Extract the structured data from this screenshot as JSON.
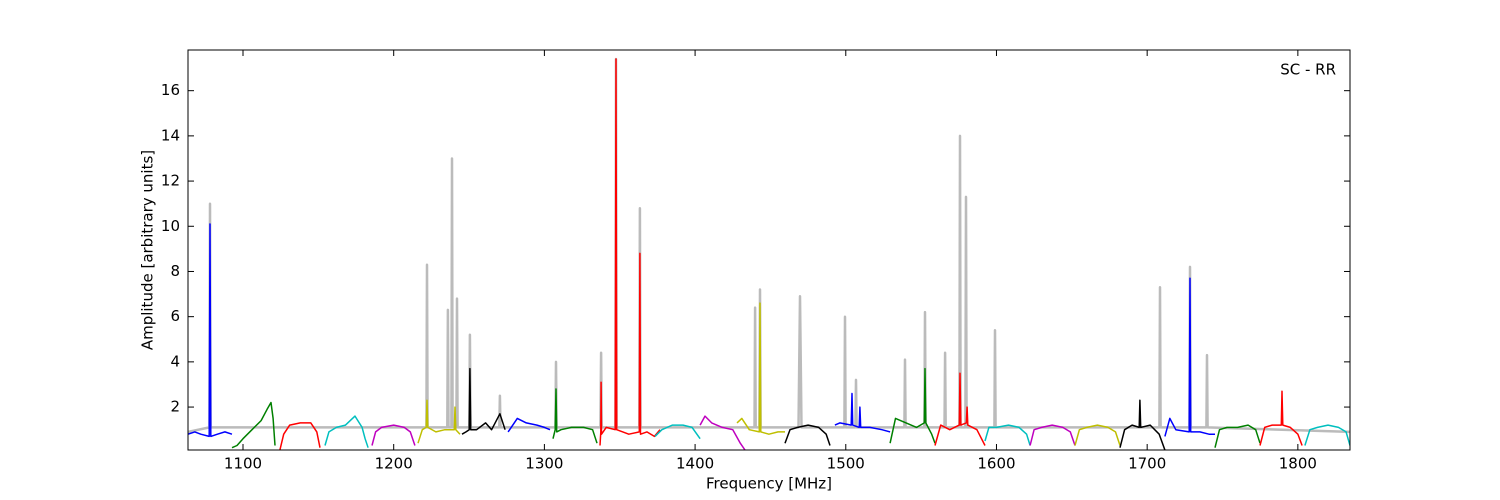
{
  "chart_data": {
    "type": "line",
    "annotation": "SC - RR",
    "xlabel": "Frequency [MHz]",
    "ylabel": "Amplitude [arbitrary units]",
    "xlim": [
      1063.5,
      1834.6
    ],
    "ylim": [
      0.1,
      17.8
    ],
    "xticks": [
      1100,
      1200,
      1300,
      1400,
      1500,
      1600,
      1700,
      1800
    ],
    "yticks": [
      2,
      4,
      6,
      8,
      10,
      12,
      14,
      16
    ],
    "series": [
      {
        "color": "#bbbbbb",
        "x": [
          1063.5,
          1077.7,
          1078.1,
          1078.5,
          1221.7,
          1222.1,
          1222.5,
          1235.6,
          1236,
          1236.4,
          1238.3,
          1238.7,
          1239.1,
          1241.6,
          1242,
          1242.4,
          1250.2,
          1250.6,
          1251,
          1270.1,
          1270.5,
          1270.9,
          1307.3,
          1307.7,
          1308.1,
          1337.2,
          1337.6,
          1338,
          1347.1,
          1347.5,
          1347.9,
          1363,
          1363.4,
          1363.8,
          1439.4,
          1439.8,
          1440.2,
          1442.7,
          1443.1,
          1443.5,
          1468.6,
          1469.6,
          1470.6,
          1499.1,
          1499.5,
          1499.9,
          1506.4,
          1506.8,
          1507.2,
          1538.9,
          1539.3,
          1539.7,
          1552.2,
          1552.6,
          1553,
          1565.5,
          1565.9,
          1566.3,
          1575.4,
          1575.8,
          1576.2,
          1579.4,
          1579.8,
          1580.2,
          1598.6,
          1599,
          1599.4,
          1708.1,
          1708.5,
          1708.9,
          1728,
          1728.4,
          1728.8,
          1739.3,
          1739.7,
          1740.1,
          1834.6
        ],
        "values": [
          0.9,
          1.1,
          11.0,
          1.1,
          1.1,
          8.3,
          1.1,
          1.1,
          6.3,
          1.1,
          1.1,
          13.0,
          1.1,
          1.1,
          6.8,
          1.1,
          1.1,
          5.2,
          1.1,
          1.1,
          2.5,
          1.1,
          1.1,
          4.0,
          1.1,
          1.1,
          4.4,
          1.1,
          1.1,
          17.4,
          1.1,
          1.1,
          10.8,
          1.1,
          1.1,
          6.4,
          1.1,
          1.1,
          7.2,
          1.1,
          1.1,
          6.9,
          1.1,
          1.1,
          6.0,
          1.1,
          1.1,
          3.2,
          1.1,
          1.1,
          4.1,
          1.1,
          1.1,
          6.2,
          1.1,
          1.1,
          4.4,
          1.1,
          1.1,
          14.0,
          1.1,
          1.1,
          11.3,
          1.1,
          1.1,
          5.4,
          1.1,
          1.1,
          7.3,
          1.1,
          1.1,
          8.2,
          1.1,
          1.1,
          4.3,
          1.1,
          0.9
        ]
      },
      {
        "color": "#0000ff",
        "x": [
          1063.5,
          1068,
          1072,
          1077.6,
          1078.1,
          1078.6,
          1083,
          1088,
          1092.7
        ],
        "values": [
          0.8,
          0.9,
          0.8,
          0.7,
          10.1,
          0.7,
          0.8,
          0.9,
          0.8
        ]
      },
      {
        "color": "#008000",
        "x": [
          1092.7,
          1096,
          1100,
          1106,
          1112,
          1116,
          1118.6,
          1120,
          1121.2
        ],
        "values": [
          0.2,
          0.3,
          0.6,
          1.0,
          1.4,
          1.9,
          2.2,
          1.5,
          0.3
        ]
      },
      {
        "color": "#ff0000",
        "x": [
          1124.5,
          1127,
          1131,
          1138,
          1145,
          1149,
          1151.1
        ],
        "values": [
          0.1,
          0.8,
          1.2,
          1.3,
          1.3,
          0.9,
          0.2
        ]
      },
      {
        "color": "#00bfbf",
        "x": [
          1154.4,
          1157,
          1162,
          1168,
          1174.3,
          1179,
          1181,
          1183
        ],
        "values": [
          0.3,
          0.9,
          1.1,
          1.2,
          1.6,
          1.1,
          0.6,
          0.2
        ]
      },
      {
        "color": "#bf00bf",
        "x": [
          1185.6,
          1188,
          1192,
          1200,
          1207,
          1211,
          1214.1
        ],
        "values": [
          0.3,
          0.9,
          1.1,
          1.2,
          1.1,
          0.9,
          0.3
        ]
      },
      {
        "color": "#bfbf00",
        "x": [
          1216.1,
          1219,
          1221.6,
          1222.1,
          1222.6,
          1228,
          1234,
          1240.2,
          1240.7,
          1241.2,
          1244
        ],
        "values": [
          0.4,
          1.0,
          1.1,
          2.3,
          1.1,
          0.9,
          1.0,
          1.0,
          2.0,
          1.0,
          0.8
        ]
      },
      {
        "color": "#000000",
        "x": [
          1245.3,
          1248,
          1250.1,
          1250.6,
          1251.1,
          1255,
          1261,
          1265,
          1270.5,
          1273.9
        ],
        "values": [
          0.8,
          0.9,
          1.0,
          3.7,
          1.0,
          1.0,
          1.3,
          1.0,
          1.7,
          1.0
        ]
      },
      {
        "color": "#0000ff",
        "x": [
          1275.9,
          1278,
          1282,
          1288,
          1295,
          1300,
          1303.7
        ],
        "values": [
          0.9,
          1.1,
          1.5,
          1.3,
          1.2,
          1.1,
          1.0
        ]
      },
      {
        "color": "#008000",
        "x": [
          1305.7,
          1307.2,
          1307.7,
          1308.2,
          1311,
          1318,
          1326,
          1332,
          1334.9
        ],
        "values": [
          0.6,
          1.0,
          2.8,
          0.9,
          1.0,
          1.1,
          1.1,
          1.0,
          0.4
        ]
      },
      {
        "color": "#ff0000",
        "x": [
          1336.9,
          1337.4,
          1337.6,
          1337.9,
          1341,
          1347,
          1347.5,
          1348,
          1352,
          1356,
          1363,
          1363.4,
          1363.8,
          1368,
          1373,
          1376.7
        ],
        "values": [
          0.3,
          0.9,
          3.1,
          0.8,
          1.1,
          1.0,
          17.4,
          1.0,
          0.9,
          0.8,
          0.9,
          8.8,
          0.8,
          0.9,
          0.7,
          1.0
        ]
      },
      {
        "color": "#00bfbf",
        "x": [
          1373.4,
          1378,
          1385,
          1392,
          1398,
          1403.3
        ],
        "values": [
          0.7,
          1.0,
          1.2,
          1.2,
          1.1,
          0.6
        ]
      },
      {
        "color": "#bf00bf",
        "x": [
          1403.3,
          1406.6,
          1411,
          1418,
          1425,
          1430,
          1433.1
        ],
        "values": [
          1.2,
          1.6,
          1.3,
          1.1,
          1.0,
          0.4,
          0.1
        ]
      },
      {
        "color": "#bfbf00",
        "x": [
          1427.8,
          1431,
          1436,
          1442.6,
          1443.1,
          1443.6,
          1449,
          1455,
          1459.7
        ],
        "values": [
          1.3,
          1.5,
          1.0,
          0.9,
          6.6,
          0.9,
          0.8,
          0.9,
          0.9
        ]
      },
      {
        "color": "#000000",
        "x": [
          1459.7,
          1463,
          1468,
          1475,
          1482,
          1487,
          1489.5
        ],
        "values": [
          0.4,
          1.0,
          1.1,
          1.2,
          1.1,
          0.8,
          0.3
        ]
      },
      {
        "color": "#0000ff",
        "x": [
          1492.8,
          1496,
          1503.6,
          1504.1,
          1504.6,
          1508.9,
          1509.4,
          1509.9,
          1516,
          1524,
          1529.4
        ],
        "values": [
          1.2,
          1.3,
          1.2,
          2.6,
          1.2,
          1.1,
          2.0,
          1.1,
          1.1,
          1.0,
          0.9
        ]
      },
      {
        "color": "#008000",
        "x": [
          1529.4,
          1533,
          1540,
          1547,
          1552.1,
          1552.6,
          1553.1,
          1557,
          1559.2
        ],
        "values": [
          0.4,
          1.5,
          1.3,
          1.1,
          1.3,
          3.7,
          1.3,
          0.8,
          0.4
        ]
      },
      {
        "color": "#ff0000",
        "x": [
          1559.2,
          1563,
          1569,
          1575.3,
          1575.8,
          1576.3,
          1580,
          1580.5,
          1581,
          1587,
          1592.4
        ],
        "values": [
          0.3,
          1.2,
          1.0,
          1.2,
          3.5,
          1.2,
          1.3,
          2.0,
          1.2,
          1.0,
          0.3
        ]
      },
      {
        "color": "#00bfbf",
        "x": [
          1592.4,
          1595,
          1600,
          1608,
          1615,
          1620,
          1622.3
        ],
        "values": [
          0.5,
          1.1,
          1.1,
          1.2,
          1.1,
          0.8,
          0.3
        ]
      },
      {
        "color": "#bf00bf",
        "x": [
          1622.3,
          1625,
          1630,
          1637,
          1644,
          1649,
          1652.1
        ],
        "values": [
          0.3,
          1.0,
          1.1,
          1.2,
          1.1,
          0.9,
          0.3
        ]
      },
      {
        "color": "#bfbf00",
        "x": [
          1652.1,
          1655,
          1660,
          1667,
          1674,
          1679,
          1682
        ],
        "values": [
          0.3,
          1.0,
          1.1,
          1.2,
          1.1,
          0.9,
          0.3
        ]
      },
      {
        "color": "#000000",
        "x": [
          1682,
          1685,
          1690,
          1694.7,
          1695.2,
          1695.7,
          1702,
          1708,
          1711.8
        ],
        "values": [
          0.2,
          1.0,
          1.2,
          1.1,
          2.3,
          1.1,
          1.2,
          0.8,
          0.1
        ]
      },
      {
        "color": "#0000ff",
        "x": [
          1711.8,
          1715,
          1719,
          1727.9,
          1728.4,
          1728.9,
          1735,
          1741,
          1745
        ],
        "values": [
          0.7,
          1.5,
          1.0,
          0.9,
          7.7,
          0.9,
          0.9,
          0.8,
          0.8
        ]
      },
      {
        "color": "#008000",
        "x": [
          1745,
          1748,
          1753,
          1760,
          1767,
          1772,
          1774.9
        ],
        "values": [
          0.2,
          1.0,
          1.1,
          1.1,
          1.2,
          1.0,
          0.4
        ]
      },
      {
        "color": "#ff0000",
        "x": [
          1774.9,
          1778,
          1783,
          1789,
          1789.5,
          1790,
          1795,
          1800,
          1802.8
        ],
        "values": [
          0.3,
          1.1,
          1.2,
          1.2,
          2.7,
          1.2,
          1.1,
          0.8,
          0.3
        ]
      },
      {
        "color": "#00bfbf",
        "x": [
          1804.7,
          1808,
          1813,
          1820,
          1827,
          1832,
          1834.6
        ],
        "values": [
          0.3,
          1.0,
          1.1,
          1.2,
          1.1,
          0.9,
          0.3
        ]
      }
    ]
  }
}
